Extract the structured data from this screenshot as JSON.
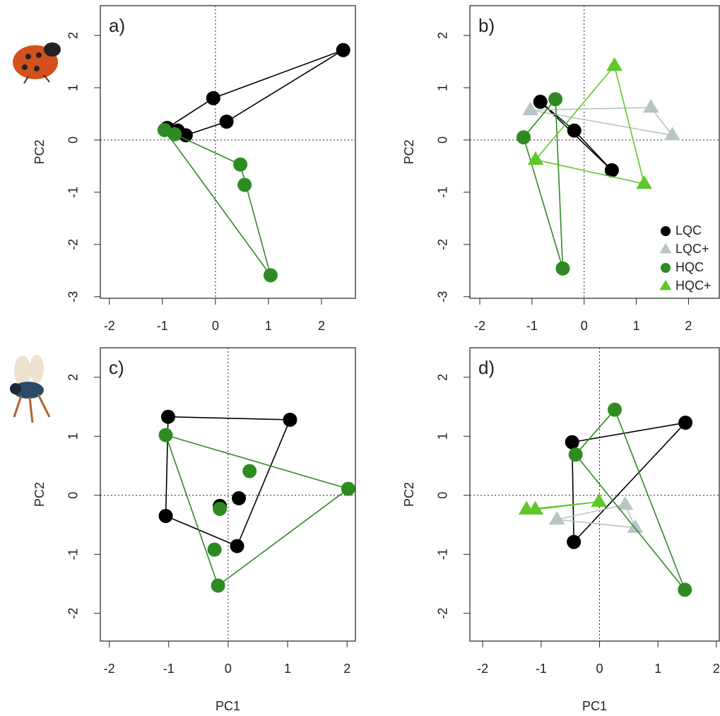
{
  "chart_data": [
    {
      "type": "scatter",
      "title": "a)",
      "ylabel": "PC2",
      "hull": true,
      "zero_lines": true,
      "xlim": [
        -2.17,
        2.64
      ],
      "ylim": [
        -3.03,
        2.57
      ],
      "xticks": [
        -2,
        -1,
        0,
        1,
        2
      ],
      "yticks": [
        -3,
        -2,
        -1,
        0,
        1,
        2
      ],
      "series": [
        {
          "color": "#000000",
          "marker": "circle",
          "x": [
            -0.91,
            -0.71,
            -0.56,
            -0.04,
            0.21,
            2.41
          ],
          "y": [
            0.23,
            0.18,
            0.09,
            0.8,
            0.35,
            1.72
          ]
        },
        {
          "color": "#2e8b22",
          "marker": "circle",
          "x": [
            -0.96,
            -0.77,
            0.47,
            0.55,
            1.04
          ],
          "y": [
            0.19,
            0.11,
            -0.47,
            -0.86,
            -2.59
          ]
        }
      ]
    },
    {
      "type": "scatter",
      "title": "b)",
      "ylabel": "PC2",
      "hull": true,
      "zero_lines": true,
      "legend": "right",
      "xlim": [
        -2.19,
        2.59
      ],
      "ylim": [
        -3.03,
        2.57
      ],
      "xticks": [
        -2,
        -1,
        0,
        1,
        2
      ],
      "yticks": [
        -3,
        -2,
        -1,
        0,
        1,
        2
      ],
      "series": [
        {
          "name": "LQC",
          "color": "#000000",
          "marker": "circle",
          "x": [
            -0.84,
            -0.19,
            0.53
          ],
          "y": [
            0.73,
            0.18,
            -0.58
          ]
        },
        {
          "name": "LQC+",
          "color": "#b9c4c4",
          "marker": "triangle",
          "x": [
            -1.03,
            1.28,
            1.69
          ],
          "y": [
            0.57,
            0.62,
            0.09
          ]
        },
        {
          "name": "HQC",
          "color": "#2e8b22",
          "marker": "circle",
          "x": [
            -0.55,
            -1.16,
            -0.41
          ],
          "y": [
            0.78,
            0.05,
            -2.46
          ]
        },
        {
          "name": "HQC+",
          "color": "#5ec82a",
          "marker": "triangle",
          "x": [
            0.58,
            -0.93,
            1.15
          ],
          "y": [
            1.42,
            -0.38,
            -0.84
          ]
        }
      ]
    },
    {
      "type": "scatter",
      "title": "c)",
      "xlabel": "PC1",
      "ylabel": "PC2",
      "hull": true,
      "zero_lines": true,
      "xlim": [
        -2.15,
        2.14
      ],
      "ylim": [
        -2.47,
        2.5
      ],
      "xticks": [
        -2,
        -1,
        0,
        1,
        2
      ],
      "yticks": [
        -2,
        -1,
        0,
        1,
        2
      ],
      "series": [
        {
          "color": "#000000",
          "marker": "circle",
          "x": [
            -1.01,
            1.04,
            -1.05,
            0.18,
            -0.14,
            0.15
          ],
          "y": [
            1.33,
            1.28,
            -0.35,
            -0.05,
            -0.18,
            -0.86
          ]
        },
        {
          "color": "#2e8b22",
          "marker": "circle",
          "x": [
            -1.05,
            2.02,
            0.36,
            -0.14,
            -0.23,
            -0.17
          ],
          "y": [
            1.02,
            0.11,
            0.41,
            -0.23,
            -0.92,
            -1.53
          ]
        }
      ]
    },
    {
      "type": "scatter",
      "title": "d)",
      "xlabel": "PC1",
      "ylabel": "PC2",
      "hull": true,
      "zero_lines": true,
      "xlim": [
        -2.22,
        2.05
      ],
      "ylim": [
        -2.47,
        2.5
      ],
      "xticks": [
        -2,
        -1,
        0,
        1,
        2
      ],
      "yticks": [
        -2,
        -1,
        0,
        1,
        2
      ],
      "series": [
        {
          "color": "#000000",
          "marker": "circle",
          "x": [
            -0.47,
            1.47,
            -0.44
          ],
          "y": [
            0.9,
            1.23,
            -0.79
          ]
        },
        {
          "color": "#b9c4c4",
          "marker": "triangle",
          "x": [
            -0.73,
            0.44,
            0.61
          ],
          "y": [
            -0.41,
            -0.16,
            -0.55
          ]
        },
        {
          "color": "#2e8b22",
          "marker": "circle",
          "x": [
            0.26,
            -0.41,
            1.46
          ],
          "y": [
            1.45,
            0.69,
            -1.6
          ]
        },
        {
          "color": "#5ec82a",
          "marker": "triangle",
          "x": [
            -1.25,
            -1.1,
            -0.01
          ],
          "y": [
            -0.24,
            -0.24,
            -0.11
          ]
        }
      ]
    }
  ]
}
